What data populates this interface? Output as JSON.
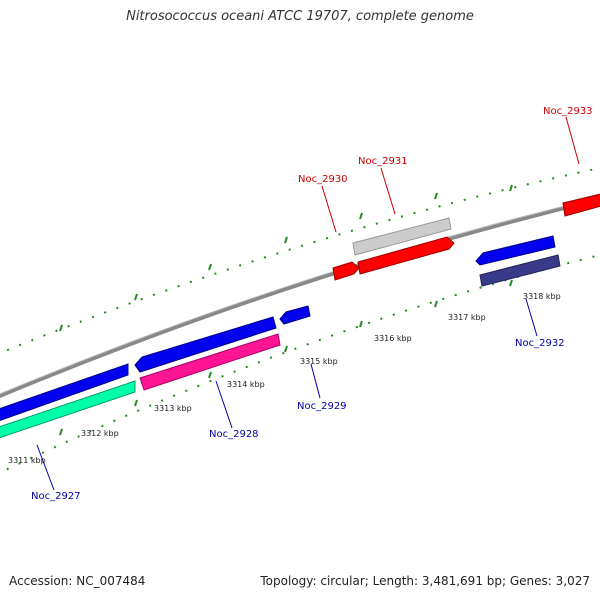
{
  "title": "Nitrosococcus oceani ATCC 19707, complete genome",
  "footer": {
    "accession": "Accession: NC_007484",
    "topology": "Topology: circular; Length: 3,481,691 bp; Genes: 3,027"
  },
  "colors": {
    "backbone": "#888888",
    "forward_label": "#cc0000",
    "reverse_label": "#0000aa",
    "tick": "#228b22"
  },
  "scale_labels": [
    "3311 kbp",
    "3312 kbp",
    "3313 kbp",
    "3314 kbp",
    "3315 kbp",
    "3316 kbp",
    "3317 kbp",
    "3318 kbp"
  ],
  "genes": {
    "forward": [
      {
        "label": "Noc_2930",
        "color": "#ff0000"
      },
      {
        "label": "Noc_2931",
        "color": "#ff0000"
      },
      {
        "label": "Noc_2933",
        "color": "#ff0000"
      },
      {
        "label": "",
        "color": "#cccccc"
      }
    ],
    "reverse": [
      {
        "label": "Noc_2927",
        "color": "#00ffaa"
      },
      {
        "label": "Noc_2928",
        "color": "#ff1493"
      },
      {
        "label": "Noc_2929",
        "color": "#0000ee"
      },
      {
        "label": "Noc_2932",
        "color": "#0000ee"
      },
      {
        "label": "",
        "color": "#0000ee"
      },
      {
        "label": "",
        "color": "#3a3a8a"
      }
    ]
  }
}
